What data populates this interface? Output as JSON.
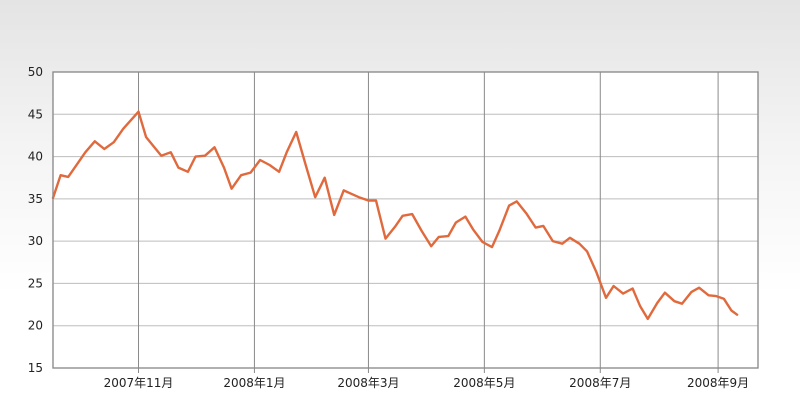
{
  "chart_data": {
    "type": "line",
    "title": "",
    "xlabel": "",
    "ylabel": "",
    "ylim": [
      15,
      50
    ],
    "yticks": [
      15,
      20,
      25,
      30,
      35,
      40,
      45,
      50
    ],
    "grid": true,
    "xlim": [
      "2007-09-17",
      "2008-09-22"
    ],
    "xticks": [
      {
        "date": "2007-11-01",
        "label": "2007年11月"
      },
      {
        "date": "2008-01-01",
        "label": "2008年1月"
      },
      {
        "date": "2008-03-01",
        "label": "2008年3月"
      },
      {
        "date": "2008-05-01",
        "label": "2008年5月"
      },
      {
        "date": "2008-07-01",
        "label": "2008年7月"
      },
      {
        "date": "2008-09-01",
        "label": "2008年9月"
      }
    ],
    "series": [
      {
        "color": "#e06a3d",
        "x": [
          "2007-09-17",
          "2007-09-21",
          "2007-09-25",
          "2007-09-30",
          "2007-10-04",
          "2007-10-09",
          "2007-10-14",
          "2007-10-19",
          "2007-10-24",
          "2007-11-01",
          "2007-11-05",
          "2007-11-13",
          "2007-11-18",
          "2007-11-22",
          "2007-11-27",
          "2007-12-01",
          "2007-12-06",
          "2007-12-11",
          "2007-12-16",
          "2007-12-20",
          "2007-12-25",
          "2007-12-30",
          "2008-01-04",
          "2008-01-09",
          "2008-01-14",
          "2008-01-18",
          "2008-01-23",
          "2008-01-28",
          "2008-02-02",
          "2008-02-07",
          "2008-02-12",
          "2008-02-17",
          "2008-02-21",
          "2008-02-25",
          "2008-03-01",
          "2008-03-05",
          "2008-03-10",
          "2008-03-15",
          "2008-03-19",
          "2008-03-24",
          "2008-03-29",
          "2008-04-03",
          "2008-04-07",
          "2008-04-12",
          "2008-04-16",
          "2008-04-21",
          "2008-04-25",
          "2008-04-30",
          "2008-05-05",
          "2008-05-09",
          "2008-05-14",
          "2008-05-18",
          "2008-05-23",
          "2008-05-28",
          "2008-06-01",
          "2008-06-06",
          "2008-06-11",
          "2008-06-15",
          "2008-06-20",
          "2008-06-24",
          "2008-06-29",
          "2008-07-04",
          "2008-07-08",
          "2008-07-13",
          "2008-07-18",
          "2008-07-22",
          "2008-07-26",
          "2008-07-31",
          "2008-08-04",
          "2008-08-09",
          "2008-08-13",
          "2008-08-18",
          "2008-08-22",
          "2008-08-27",
          "2008-08-31",
          "2008-09-04",
          "2008-09-08",
          "2008-09-11"
        ],
        "values": [
          35.1,
          37.8,
          37.6,
          39.2,
          40.5,
          41.8,
          40.9,
          41.7,
          43.3,
          45.3,
          42.3,
          40.1,
          40.5,
          38.7,
          38.2,
          40.0,
          40.1,
          41.1,
          38.7,
          36.2,
          37.8,
          38.1,
          39.6,
          39.0,
          38.2,
          40.5,
          42.9,
          39.0,
          35.2,
          37.5,
          33.1,
          36.0,
          35.6,
          35.2,
          34.8,
          34.8,
          30.3,
          31.7,
          33.0,
          33.2,
          31.2,
          29.4,
          30.5,
          30.6,
          32.2,
          32.9,
          31.4,
          29.9,
          29.3,
          31.3,
          34.2,
          34.7,
          33.3,
          31.6,
          31.8,
          30.0,
          29.7,
          30.4,
          29.7,
          28.8,
          26.3,
          23.3,
          24.7,
          23.8,
          24.4,
          22.3,
          20.8,
          22.7,
          23.9,
          22.9,
          22.6,
          24.0,
          24.5,
          23.6,
          23.5,
          23.2,
          21.8,
          21.3
        ]
      }
    ]
  }
}
